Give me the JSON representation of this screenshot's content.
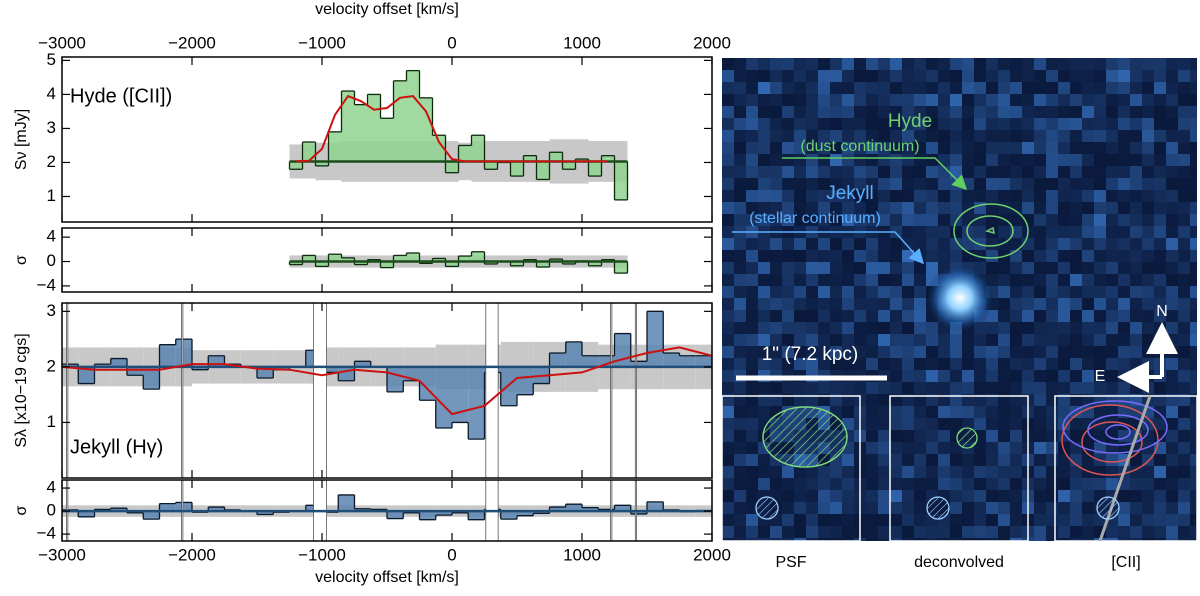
{
  "chart_data": [
    {
      "type": "histogram",
      "xlabel": "velocity offset [km/s]",
      "xlabel_position": "top",
      "ylabel": "Sν [mJy]",
      "annotation": "Hyde ([CII])",
      "annotation_corner": "upper left",
      "xlim": [
        -3000,
        2000
      ],
      "xticks": [
        {
          "value": -3000,
          "label": "−3000"
        },
        {
          "value": -2000,
          "label": "−2000"
        },
        {
          "value": -1000,
          "label": "−1000"
        },
        0,
        1000,
        2000
      ],
      "ylim": [
        0.25,
        5.1
      ],
      "yticks": [
        1,
        2,
        3,
        4,
        5
      ],
      "bins": [
        -1250,
        -1150,
        -1050,
        -950,
        -850,
        -750,
        -650,
        -550,
        -450,
        -350,
        -250,
        -150,
        -50,
        50,
        150,
        250,
        350,
        450,
        550,
        650,
        750,
        850,
        950,
        1050,
        1150,
        1250,
        1350
      ],
      "values": [
        1.8,
        2.6,
        1.9,
        2.9,
        4.1,
        3.7,
        4.0,
        3.3,
        4.4,
        4.7,
        3.9,
        2.8,
        1.7,
        2.5,
        2.8,
        1.8,
        2.0,
        1.6,
        2.2,
        1.5,
        2.3,
        1.8,
        2.1,
        1.6,
        2.2,
        0.9
      ],
      "noise": [
        0.5,
        0.5,
        0.55,
        0.55,
        0.6,
        0.6,
        0.6,
        0.6,
        0.6,
        0.6,
        0.6,
        0.6,
        0.6,
        0.55,
        0.6,
        0.6,
        0.6,
        0.6,
        0.6,
        0.6,
        0.65,
        0.65,
        0.65,
        0.6,
        0.6,
        0.6
      ],
      "continuum": 2.03,
      "color": "#8fd48f",
      "edge_color": "#0d2a0d",
      "continuum_color": "#1a4d1a",
      "band_color": "#c8c8c8",
      "model": {
        "color": "#cc1111",
        "x": [
          -1200,
          -1100,
          -1000,
          -900,
          -800,
          -700,
          -600,
          -500,
          -400,
          -300,
          -200,
          -100,
          0,
          100,
          200,
          300,
          400,
          500,
          600,
          700,
          800,
          900,
          1000,
          1100,
          1200
        ],
        "values": [
          2.03,
          2.05,
          2.4,
          3.4,
          3.95,
          3.8,
          3.55,
          3.6,
          3.9,
          3.95,
          3.5,
          2.6,
          2.1,
          2.03,
          2.03,
          2.03,
          2.03,
          2.03,
          2.03,
          2.03,
          2.03,
          2.03,
          2.03,
          2.03,
          2.03
        ]
      }
    },
    {
      "type": "histogram",
      "ylabel": "σ",
      "xlim": [
        -3000,
        2000
      ],
      "xticks": [
        -3000,
        -2000,
        -1000,
        0,
        1000,
        2000
      ],
      "ylim": [
        -5,
        5.5
      ],
      "yticks": [
        {
          "value": -4,
          "label": "−4"
        },
        0,
        4
      ],
      "bins": [
        -1250,
        -1150,
        -1050,
        -950,
        -850,
        -750,
        -650,
        -550,
        -450,
        -350,
        -250,
        -150,
        -50,
        50,
        150,
        250,
        350,
        450,
        550,
        650,
        750,
        850,
        950,
        1050,
        1150,
        1250,
        1350
      ],
      "values": [
        -0.5,
        1.0,
        -0.8,
        1.2,
        0.6,
        -0.5,
        0.3,
        -1.0,
        1.0,
        1.4,
        -0.3,
        0.5,
        -0.8,
        0.9,
        1.6,
        -0.4,
        0,
        -0.7,
        0.3,
        -0.9,
        0.4,
        -0.4,
        0.1,
        -0.7,
        0.3,
        -1.9
      ],
      "noise": 1,
      "continuum": 0,
      "color": "#8fd48f",
      "edge_color": "#0d2a0d",
      "continuum_color": "#1a4d1a",
      "band_color": "#c8c8c8"
    },
    {
      "type": "histogram",
      "ylabel": "Sλ [x10−19 cgs]",
      "annotation": "Jekyll (Hγ)",
      "annotation_corner": "lower left",
      "xlim": [
        -3000,
        2000
      ],
      "xticks": [
        -3000,
        -2000,
        -1000,
        0,
        1000,
        2000
      ],
      "ylim": [
        0,
        3.15
      ],
      "yticks": [
        1,
        2,
        3
      ],
      "bins": [
        -3000,
        -2875,
        -2750,
        -2625,
        -2500,
        -2375,
        -2250,
        -2125,
        -2000,
        -1875,
        -1750,
        -1625,
        -1500,
        -1375,
        -1250,
        -1125,
        -1000,
        -875,
        -750,
        -625,
        -500,
        -375,
        -250,
        -125,
        0,
        125,
        250,
        375,
        500,
        625,
        750,
        875,
        1000,
        1125,
        1250,
        1375,
        1500,
        1625,
        1750,
        1875,
        2000
      ],
      "values": [
        2.05,
        1.7,
        2.05,
        2.15,
        1.85,
        1.6,
        2.4,
        2.5,
        1.95,
        2.2,
        2.05,
        2.0,
        1.8,
        1.95,
        2.0,
        2.3,
        1.9,
        1.75,
        2.1,
        2.0,
        1.55,
        1.75,
        1.4,
        0.9,
        1.0,
        0.7,
        1.9,
        1.3,
        1.5,
        1.7,
        2.25,
        2.45,
        2.2,
        2.2,
        2.6,
        2.1,
        3.0,
        2.25,
        2.2,
        2.2
      ],
      "noise": [
        0.35,
        0.35,
        0.35,
        0.35,
        0.35,
        0.35,
        0.35,
        0.35,
        0.3,
        0.3,
        0.3,
        0.3,
        0.3,
        0.3,
        0.3,
        0.3,
        0.35,
        0.35,
        0.35,
        0.35,
        0.35,
        0.35,
        0.35,
        0.4,
        0.4,
        0.4,
        0.4,
        0.45,
        0.45,
        0.45,
        0.45,
        0.45,
        0.45,
        0.4,
        0.4,
        0.4,
        0.4,
        0.4,
        0.4,
        0.4
      ],
      "continuum": 2.0,
      "color": "#5b84b1",
      "edge_color": "#0a1a2a",
      "continuum_color": "#1f4e79",
      "band_color": "#c8c8c8",
      "masked": [
        [
          -2965,
          -2955
        ],
        [
          -2080,
          -2070
        ],
        [
          -1065,
          -965
        ],
        [
          260,
          355
        ],
        [
          1220,
          1230
        ],
        [
          1410,
          1420
        ]
      ],
      "model": {
        "color": "#cc1111",
        "x": [
          -3000,
          -2750,
          -2500,
          -2250,
          -2000,
          -1750,
          -1500,
          -1250,
          -1000,
          -750,
          -500,
          -250,
          0,
          250,
          500,
          750,
          1000,
          1250,
          1500,
          1750,
          2000
        ],
        "values": [
          2.0,
          1.95,
          1.95,
          1.95,
          2.05,
          2.05,
          1.97,
          1.95,
          1.85,
          1.95,
          1.9,
          1.75,
          1.15,
          1.3,
          1.8,
          1.85,
          1.9,
          2.1,
          2.25,
          2.35,
          2.2
        ]
      }
    },
    {
      "type": "histogram",
      "ylabel": "σ",
      "xlabel": "velocity offset [km/s]",
      "xlabel_position": "bottom",
      "xlim": [
        -3000,
        2000
      ],
      "xticks": [
        {
          "value": -3000,
          "label": "−3000"
        },
        {
          "value": -2000,
          "label": "−2000"
        },
        {
          "value": -1000,
          "label": "−1000"
        },
        0,
        1000,
        2000
      ],
      "ylim": [
        -5.2,
        5.4
      ],
      "yticks": [
        {
          "value": -4,
          "label": "−4"
        },
        0,
        4
      ],
      "bins": [
        -3000,
        -2875,
        -2750,
        -2625,
        -2500,
        -2375,
        -2250,
        -2125,
        -2000,
        -1875,
        -1750,
        -1625,
        -1500,
        -1375,
        -1250,
        -1125,
        -1000,
        -875,
        -750,
        -625,
        -500,
        -375,
        -250,
        -125,
        0,
        125,
        250,
        375,
        500,
        625,
        750,
        875,
        1000,
        1125,
        1250,
        1375,
        1500,
        1625,
        1750,
        1875,
        2000
      ],
      "values": [
        0.2,
        -1.0,
        0.3,
        0.5,
        -0.3,
        -1.4,
        1.3,
        1.5,
        -0.2,
        0.7,
        0.2,
        0,
        -0.6,
        -0.2,
        0,
        1.0,
        -0.2,
        2.8,
        0.4,
        0.3,
        -1.3,
        -0.3,
        -1.5,
        -0.7,
        -0.3,
        -1.5,
        0.3,
        -1.4,
        -0.8,
        -0.4,
        0.7,
        1.2,
        0.6,
        0.3,
        1.0,
        -0.5,
        1.6,
        0.2,
        -0.1,
        0.1
      ],
      "noise": 1,
      "continuum": 0,
      "color": "#5b84b1",
      "edge_color": "#0a1a2a",
      "continuum_color": "#1f4e79",
      "band_color": "#c8c8c8",
      "masked": [
        [
          -2965,
          -2955
        ],
        [
          -2080,
          -2070
        ],
        [
          -1065,
          -965
        ],
        [
          260,
          355
        ],
        [
          1220,
          1230
        ],
        [
          1410,
          1420
        ]
      ]
    }
  ],
  "image": {
    "hyde_label": "Hyde",
    "hyde_sub": "(dust continuum)",
    "jekyll_label": "Jekyll",
    "jekyll_sub": "(stellar continuum)",
    "scale_bar": "1\" (7.2 kpc)",
    "north": "N",
    "east": "E",
    "insets": [
      "PSF",
      "deconvolved",
      "[CII]"
    ]
  }
}
